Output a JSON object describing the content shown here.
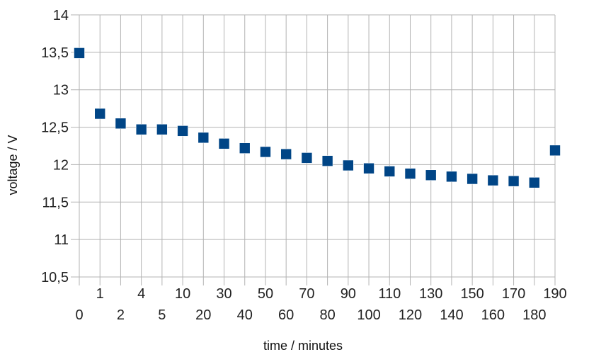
{
  "chart_data": {
    "type": "scatter",
    "title": "",
    "xlabel": "time / minutes",
    "ylabel": "voltage / V",
    "ylim": [
      10.5,
      14
    ],
    "y_ticks": [
      "10,5",
      "11",
      "11,5",
      "12",
      "12,5",
      "13",
      "13,5",
      "14"
    ],
    "grid": true,
    "legend": "none",
    "marker_color": "#004586",
    "categories": [
      "0",
      "1",
      "2",
      "4",
      "5",
      "10",
      "20",
      "30",
      "40",
      "50",
      "60",
      "70",
      "80",
      "90",
      "100",
      "110",
      "120",
      "130",
      "140",
      "150",
      "160",
      "170",
      "180",
      "190"
    ],
    "series": [
      {
        "values": [
          13.49,
          12.68,
          12.55,
          12.47,
          12.47,
          12.45,
          12.36,
          12.28,
          12.22,
          12.17,
          12.14,
          12.09,
          12.05,
          11.99,
          11.95,
          11.91,
          11.88,
          11.86,
          11.84,
          11.81,
          11.79,
          11.78,
          11.76,
          12.19
        ]
      }
    ]
  }
}
